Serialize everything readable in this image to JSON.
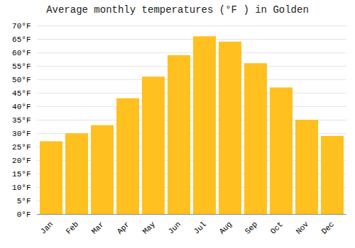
{
  "chart_data": {
    "type": "bar",
    "title": "Average monthly temperatures (°F ) in Golden",
    "categories": [
      "Jan",
      "Feb",
      "Mar",
      "Apr",
      "May",
      "Jun",
      "Jul",
      "Aug",
      "Sep",
      "Oct",
      "Nov",
      "Dec"
    ],
    "values": [
      27,
      30,
      33,
      43,
      51,
      59,
      66,
      64,
      56,
      47,
      35,
      29
    ],
    "color": "#FFC020",
    "ylim": [
      0,
      70
    ],
    "yticks": [
      {
        "value": 0,
        "label": "0°F"
      },
      {
        "value": 5,
        "label": "5°F"
      },
      {
        "value": 10,
        "label": "10°F"
      },
      {
        "value": 15,
        "label": "15°F"
      },
      {
        "value": 20,
        "label": "20°F"
      },
      {
        "value": 25,
        "label": "25°F"
      },
      {
        "value": 30,
        "label": "30°F"
      },
      {
        "value": 35,
        "label": "35°F"
      },
      {
        "value": 40,
        "label": "40°F"
      },
      {
        "value": 45,
        "label": "45°F"
      },
      {
        "value": 50,
        "label": "50°F"
      },
      {
        "value": 55,
        "label": "55°F"
      },
      {
        "value": 60,
        "label": "60°F"
      },
      {
        "value": 65,
        "label": "65°F"
      },
      {
        "value": 70,
        "label": "70°F"
      }
    ],
    "grid": true
  }
}
